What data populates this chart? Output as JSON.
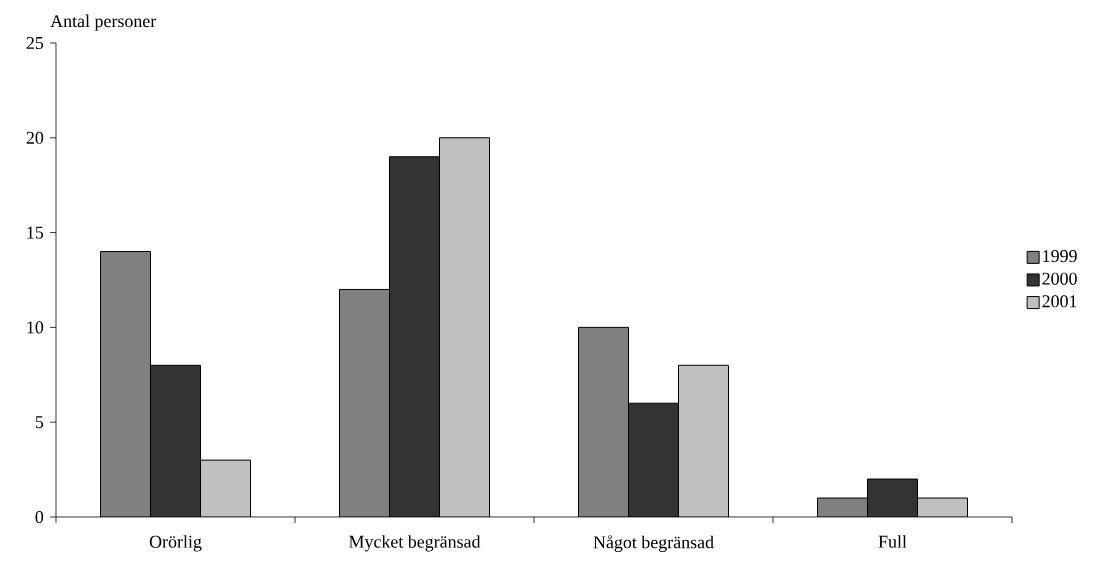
{
  "chart_data": {
    "type": "bar",
    "ylabel": "Antal personer",
    "categories": [
      "Orörlig",
      "Mycket begränsad",
      "Något begränsad",
      "Full"
    ],
    "series": [
      {
        "name": "1999",
        "color": "#808080",
        "values": [
          14,
          12,
          10,
          1
        ]
      },
      {
        "name": "2000",
        "color": "#333333",
        "values": [
          8,
          19,
          6,
          2
        ]
      },
      {
        "name": "2001",
        "color": "#c0c0c0",
        "values": [
          3,
          20,
          8,
          1
        ]
      }
    ],
    "ylim": [
      0,
      25
    ],
    "yticks": [
      0,
      5,
      10,
      15,
      20,
      25
    ],
    "grid": false,
    "legend": "right"
  }
}
